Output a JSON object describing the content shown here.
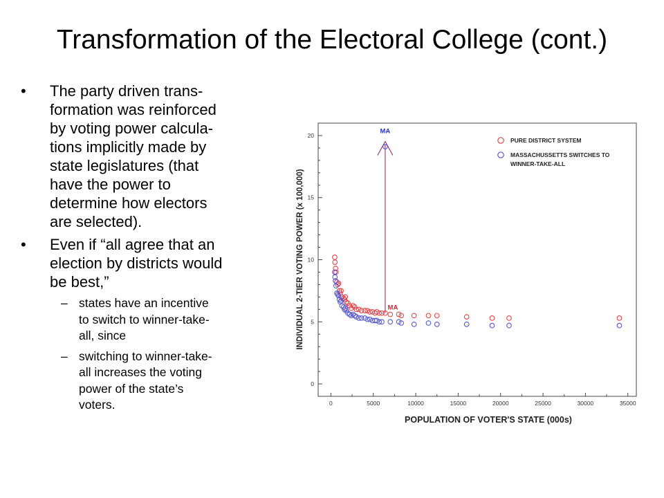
{
  "slide": {
    "title": "Transformation of the Electoral College (cont.)",
    "bullets": [
      "The party driven trans-formation was reinforced by voting power calcula-tions implicitly made by state legislatures (that have the power to determine how electors are selected).",
      "Even if “all agree that an election by districts would be best,”"
    ],
    "sub_bullets": [
      "states have an incentive to switch to winner-take-all, since",
      "switching to winner-take-all increases the voting power of the state’s voters."
    ],
    "bullet_lines": [
      [
        "The party driven trans-",
        "formation was reinforced",
        "by voting power calcula-",
        "tions implicitly made by",
        "state legislatures (that",
        "have the power to",
        "determine how electors",
        "are selected)."
      ],
      [
        "Even if “all agree that an",
        "election by districts would",
        "be best,”"
      ]
    ],
    "sub_bullet_lines": [
      [
        "states have an incentive",
        "to switch to winner-take-",
        "all, since"
      ],
      [
        "switching to winner-take-",
        "all increases the voting",
        "power of the state’s",
        "voters."
      ]
    ]
  },
  "chart_data": {
    "type": "scatter",
    "xlabel": "POPULATION OF VOTER'S STATE (000s)",
    "ylabel": "INDIVIDUAL 2-TIER VOTING POWER (x 100,000)",
    "xlim": [
      -1500,
      36000
    ],
    "ylim": [
      -1,
      21
    ],
    "xticks": [
      0,
      5000,
      10000,
      15000,
      20000,
      25000,
      30000,
      35000
    ],
    "yticks": [
      0,
      5,
      10,
      15,
      20
    ],
    "grid": false,
    "legend_position": "top-right",
    "series": [
      {
        "name": "PURE DISTRICT SYSTEM",
        "color": "#e0484c",
        "points": [
          [
            450,
            10.2
          ],
          [
            480,
            9.8
          ],
          [
            550,
            9.3
          ],
          [
            600,
            9.0
          ],
          [
            700,
            8.2
          ],
          [
            800,
            8.0
          ],
          [
            900,
            8.1
          ],
          [
            1000,
            7.5
          ],
          [
            1100,
            7.3
          ],
          [
            1200,
            7.5
          ],
          [
            1300,
            7.0
          ],
          [
            1500,
            6.9
          ],
          [
            1600,
            6.8
          ],
          [
            1700,
            7.0
          ],
          [
            1800,
            6.6
          ],
          [
            2000,
            6.5
          ],
          [
            2200,
            6.3
          ],
          [
            2400,
            6.1
          ],
          [
            2600,
            6.3
          ],
          [
            2800,
            6.2
          ],
          [
            3000,
            6.0
          ],
          [
            3300,
            6.0
          ],
          [
            3600,
            5.9
          ],
          [
            4000,
            5.9
          ],
          [
            4300,
            5.9
          ],
          [
            4600,
            5.8
          ],
          [
            4900,
            5.8
          ],
          [
            5200,
            5.7
          ],
          [
            5400,
            5.8
          ],
          [
            5700,
            5.7
          ],
          [
            6000,
            5.7
          ],
          [
            6400,
            5.7
          ],
          [
            7000,
            5.6
          ],
          [
            8000,
            5.6
          ],
          [
            8300,
            5.5
          ],
          [
            9800,
            5.5
          ],
          [
            11500,
            5.5
          ],
          [
            12500,
            5.5
          ],
          [
            16000,
            5.4
          ],
          [
            19000,
            5.3
          ],
          [
            21000,
            5.3
          ],
          [
            34000,
            5.3
          ]
        ]
      },
      {
        "name": "MASSACHUSSETTS SWITCHES TO WINNER-TAKE-ALL",
        "color": "#5a5acf",
        "points": [
          [
            450,
            9.0
          ],
          [
            480,
            8.6
          ],
          [
            550,
            8.3
          ],
          [
            600,
            7.9
          ],
          [
            700,
            7.3
          ],
          [
            800,
            7.2
          ],
          [
            900,
            7.1
          ],
          [
            1000,
            6.8
          ],
          [
            1100,
            6.6
          ],
          [
            1200,
            6.7
          ],
          [
            1300,
            6.3
          ],
          [
            1500,
            6.2
          ],
          [
            1600,
            6.0
          ],
          [
            1700,
            6.1
          ],
          [
            1800,
            5.9
          ],
          [
            2000,
            5.7
          ],
          [
            2200,
            5.6
          ],
          [
            2400,
            5.5
          ],
          [
            2600,
            5.6
          ],
          [
            2800,
            5.5
          ],
          [
            3000,
            5.4
          ],
          [
            3300,
            5.3
          ],
          [
            3600,
            5.3
          ],
          [
            4000,
            5.3
          ],
          [
            4300,
            5.2
          ],
          [
            4600,
            5.2
          ],
          [
            4900,
            5.1
          ],
          [
            5200,
            5.1
          ],
          [
            5400,
            5.1
          ],
          [
            5700,
            5.0
          ],
          [
            6000,
            5.0
          ],
          [
            6400,
            19.1
          ],
          [
            7000,
            5.0
          ],
          [
            8000,
            5.0
          ],
          [
            8300,
            4.9
          ],
          [
            9800,
            4.8
          ],
          [
            11500,
            4.9
          ],
          [
            12500,
            4.8
          ],
          [
            16000,
            4.8
          ],
          [
            19000,
            4.7
          ],
          [
            21000,
            4.7
          ],
          [
            34000,
            4.7
          ]
        ]
      }
    ],
    "annotations": [
      {
        "text": "MA",
        "x": 6400,
        "y": 20.2,
        "color": "#2b35b8"
      },
      {
        "text": "MA",
        "x": 7300,
        "y": 6.0,
        "color": "#d22a2e"
      }
    ],
    "arrow": {
      "x": 6400,
      "from_y": 5.7,
      "to_y": 19.3,
      "color": "#8b1b5a"
    }
  }
}
